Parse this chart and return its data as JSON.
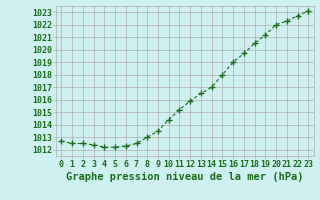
{
  "x": [
    0,
    1,
    2,
    3,
    4,
    5,
    6,
    7,
    8,
    9,
    10,
    11,
    12,
    13,
    14,
    15,
    16,
    17,
    18,
    19,
    20,
    21,
    22,
    23
  ],
  "y": [
    1012.7,
    1012.5,
    1012.5,
    1012.4,
    1012.2,
    1012.2,
    1012.3,
    1012.5,
    1013.0,
    1013.5,
    1014.4,
    1015.2,
    1015.9,
    1016.5,
    1017.0,
    1018.0,
    1019.0,
    1019.7,
    1020.5,
    1021.2,
    1022.0,
    1022.3,
    1022.7,
    1023.1
  ],
  "line_color": "#1a6e1a",
  "marker": "+",
  "marker_size": 4,
  "background_color": "#cff0f0",
  "grid_color": "#b0b0b0",
  "title": "Graphe pression niveau de la mer (hPa)",
  "title_fontsize": 7.5,
  "tick_fontsize": 6,
  "ylim_min": 1011.5,
  "ylim_max": 1023.5,
  "xlim_min": -0.5,
  "xlim_max": 23.5,
  "yticks": [
    1012,
    1013,
    1014,
    1015,
    1016,
    1017,
    1018,
    1019,
    1020,
    1021,
    1022,
    1023
  ],
  "xticks": [
    0,
    1,
    2,
    3,
    4,
    5,
    6,
    7,
    8,
    9,
    10,
    11,
    12,
    13,
    14,
    15,
    16,
    17,
    18,
    19,
    20,
    21,
    22,
    23
  ],
  "text_color": "#1a6e1a",
  "line_width": 0.8,
  "marker_linewidth": 1.0
}
